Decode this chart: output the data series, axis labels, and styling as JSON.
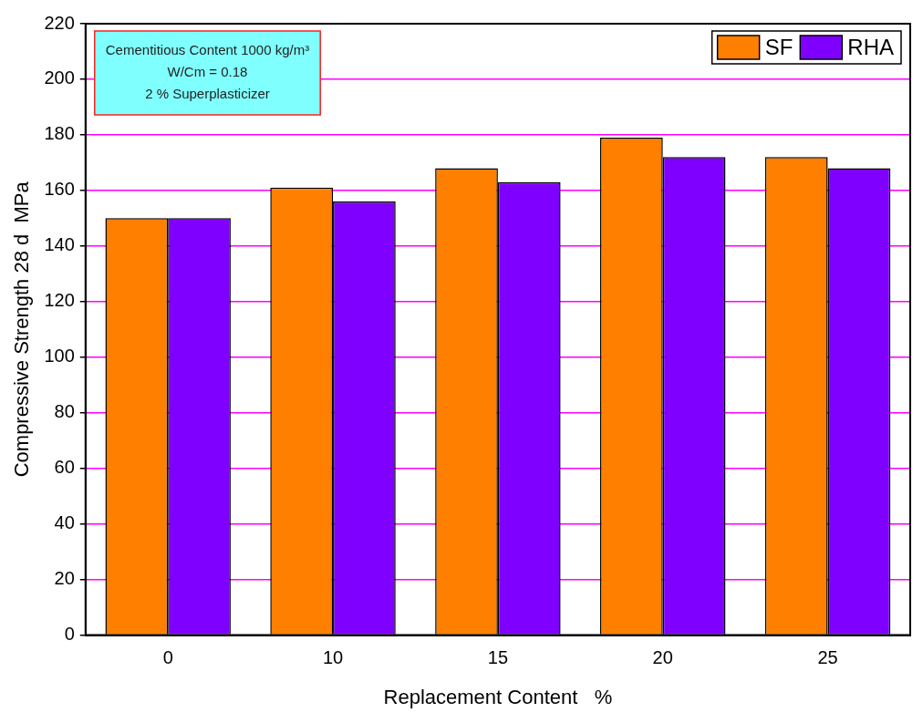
{
  "chart_data": {
    "type": "bar",
    "xlabel": "Replacement Content   %",
    "ylabel": "Compressive Strength 28 d  MPa",
    "categories": [
      "0",
      "10",
      "15",
      "20",
      "25"
    ],
    "series": [
      {
        "name": "SF",
        "color": "#ff8000",
        "values": [
          150,
          161,
          168,
          179,
          172
        ]
      },
      {
        "name": "RHA",
        "color": "#8000ff",
        "values": [
          150,
          156,
          163,
          172,
          168
        ]
      }
    ],
    "ylim": [
      0,
      220
    ],
    "yticks": [
      0,
      20,
      40,
      60,
      80,
      100,
      120,
      140,
      160,
      180,
      200,
      220
    ],
    "grid": "y",
    "legend": "top right",
    "annotations": [
      "Cementitious Content 1000 kg/m³",
      "W/Cm = 0.18",
      "2 % Superplasticizer"
    ]
  }
}
